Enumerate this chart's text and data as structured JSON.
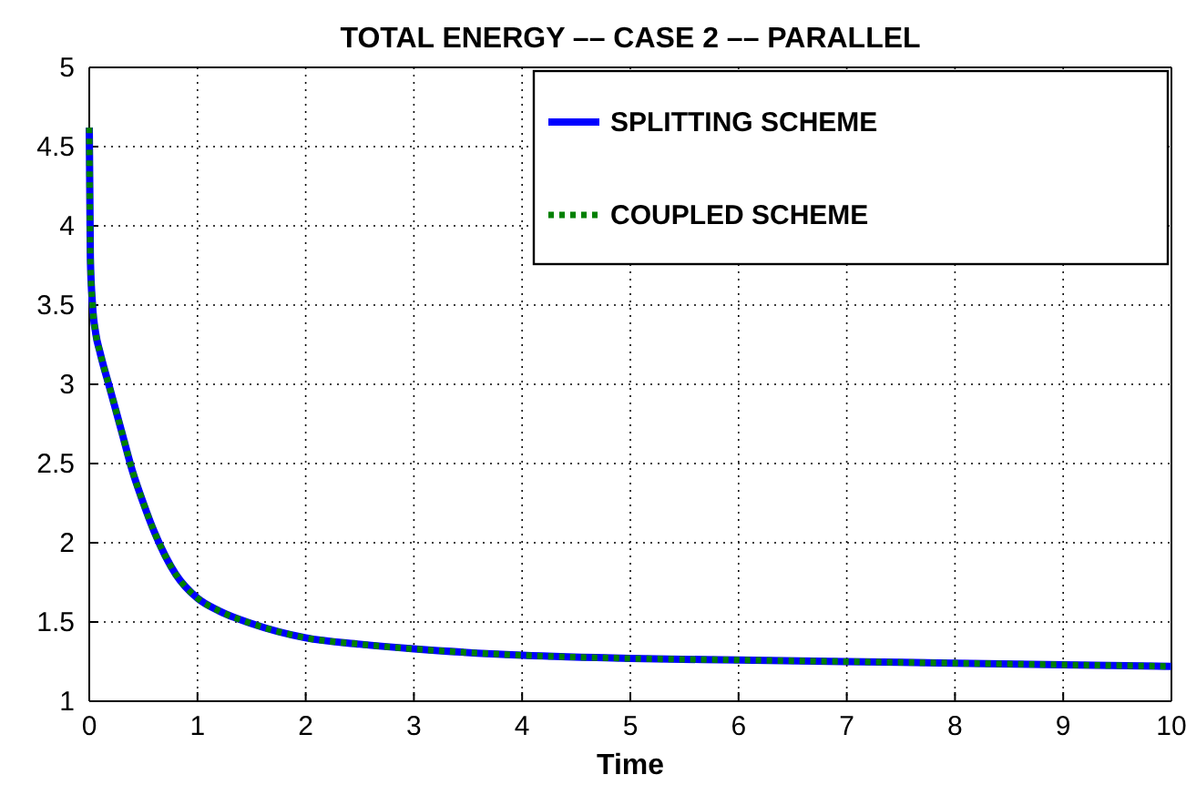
{
  "chart_data": {
    "type": "line",
    "title": "TOTAL ENERGY ––  CASE 2 –– PARALLEL",
    "xlabel": "Time",
    "x": [
      0,
      0.01,
      0.03,
      0.06,
      0.1,
      0.2,
      0.3,
      0.4,
      0.5,
      0.6,
      0.7,
      0.8,
      1,
      1.2,
      1.5,
      2,
      2.5,
      3,
      4,
      5,
      6,
      7,
      8,
      9,
      10
    ],
    "series": [
      {
        "name": "SPLITTING SCHEME",
        "color": "#0000ff",
        "line_style": "solid",
        "values": [
          4.62,
          3.8,
          3.5,
          3.32,
          3.2,
          2.95,
          2.7,
          2.45,
          2.25,
          2.07,
          1.92,
          1.8,
          1.65,
          1.57,
          1.49,
          1.4,
          1.36,
          1.33,
          1.29,
          1.27,
          1.26,
          1.25,
          1.24,
          1.23,
          1.22
        ]
      },
      {
        "name": "COUPLED SCHEME",
        "color": "#008000",
        "line_style": "dotted",
        "values": [
          4.62,
          3.8,
          3.5,
          3.32,
          3.2,
          2.95,
          2.7,
          2.45,
          2.25,
          2.07,
          1.92,
          1.8,
          1.65,
          1.57,
          1.49,
          1.4,
          1.36,
          1.33,
          1.29,
          1.27,
          1.26,
          1.25,
          1.24,
          1.23,
          1.22
        ]
      }
    ],
    "xlim": [
      0,
      10
    ],
    "xticks": [
      0,
      1,
      2,
      3,
      4,
      5,
      6,
      7,
      8,
      9,
      10
    ],
    "ylim": [
      1,
      5
    ],
    "yticks": [
      1,
      1.5,
      2,
      2.5,
      3,
      3.5,
      4,
      4.5,
      5
    ],
    "grid": true,
    "legend": "top right"
  }
}
